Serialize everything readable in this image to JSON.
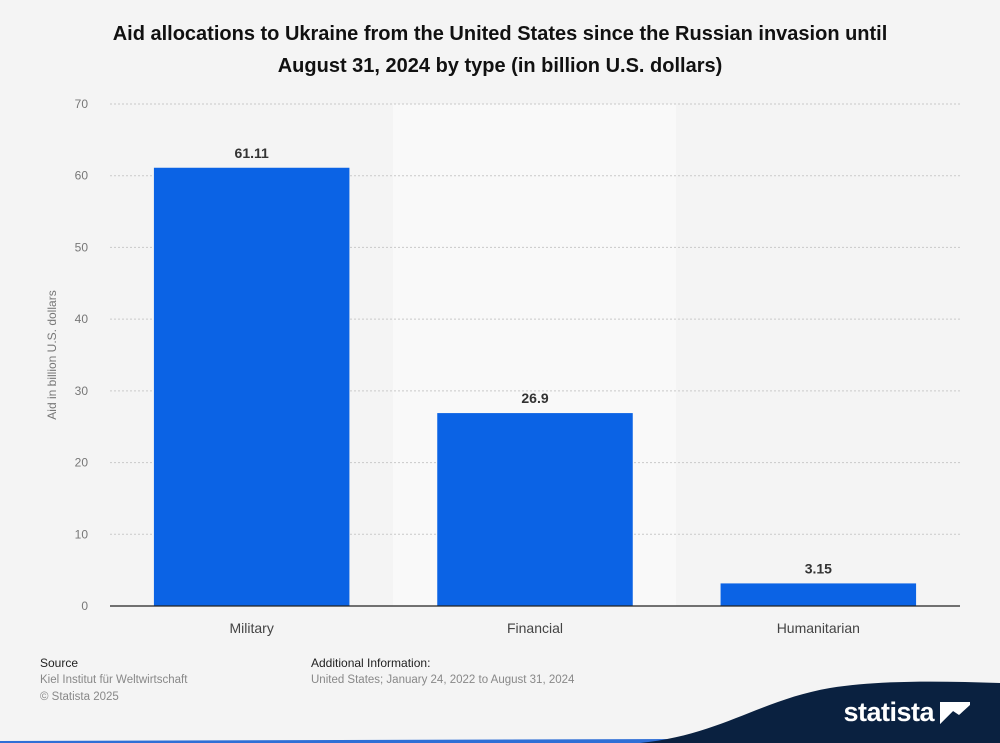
{
  "title_line1": "Aid allocations to Ukraine from the United States since the Russian invasion until",
  "title_line2": "August 31, 2024 by type (in billion U.S. dollars)",
  "chart_data": {
    "type": "bar",
    "categories": [
      "Military",
      "Financial",
      "Humanitarian"
    ],
    "values": [
      61.11,
      26.9,
      3.15
    ],
    "value_labels": [
      "61.11",
      "26.9",
      "3.15"
    ],
    "title": "Aid allocations to Ukraine from the United States since the Russian invasion until August 31, 2024 by type (in billion U.S. dollars)",
    "xlabel": "",
    "ylabel": "Aid in billion U.S. dollars",
    "ylim": [
      0,
      70
    ],
    "yticks": [
      0,
      10,
      20,
      30,
      40,
      50,
      60,
      70
    ],
    "grid": true,
    "bar_color": "#0b63e5"
  },
  "footer": {
    "source_heading": "Source",
    "source_line1": "Kiel Institut für Weltwirtschaft",
    "source_line2": "© Statista 2025",
    "info_heading": "Additional Information:",
    "info_line1": "United States; January 24, 2022 to August 31, 2024"
  },
  "brand": {
    "name": "statista",
    "color": "#0a2140",
    "accent": "#2f6fd6"
  }
}
